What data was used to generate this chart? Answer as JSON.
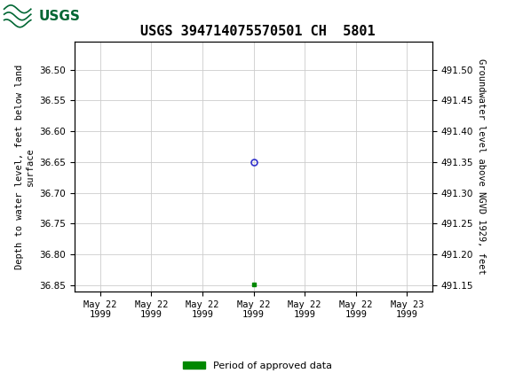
{
  "title": "USGS 394714075570501 CH  5801",
  "header_color": "#006633",
  "ylabel_left": "Depth to water level, feet below land\nsurface",
  "ylabel_right": "Groundwater level above NGVD 1929, feet",
  "ylim_left": [
    36.86,
    36.455
  ],
  "ylim_right": [
    491.14,
    491.545
  ],
  "yticks_left": [
    36.5,
    36.55,
    36.6,
    36.65,
    36.7,
    36.75,
    36.8,
    36.85
  ],
  "yticks_right": [
    491.5,
    491.45,
    491.4,
    491.35,
    491.3,
    491.25,
    491.2,
    491.15
  ],
  "xtick_labels": [
    "May 22\n1999",
    "May 22\n1999",
    "May 22\n1999",
    "May 22\n1999",
    "May 22\n1999",
    "May 22\n1999",
    "May 23\n1999"
  ],
  "xtick_positions": [
    0,
    1,
    2,
    3,
    4,
    5,
    6
  ],
  "data_point_x": 3.0,
  "data_point_y": 36.65,
  "data_point_color": "#3333cc",
  "green_square_x": 3.0,
  "green_square_y": 36.849,
  "green_square_color": "#008800",
  "legend_label": "Period of approved data",
  "legend_color": "#008800",
  "background_color": "#ffffff",
  "plot_bg_color": "#ffffff",
  "grid_color": "#cccccc",
  "title_fontsize": 11,
  "tick_fontsize": 7.5,
  "label_fontsize": 7.5
}
